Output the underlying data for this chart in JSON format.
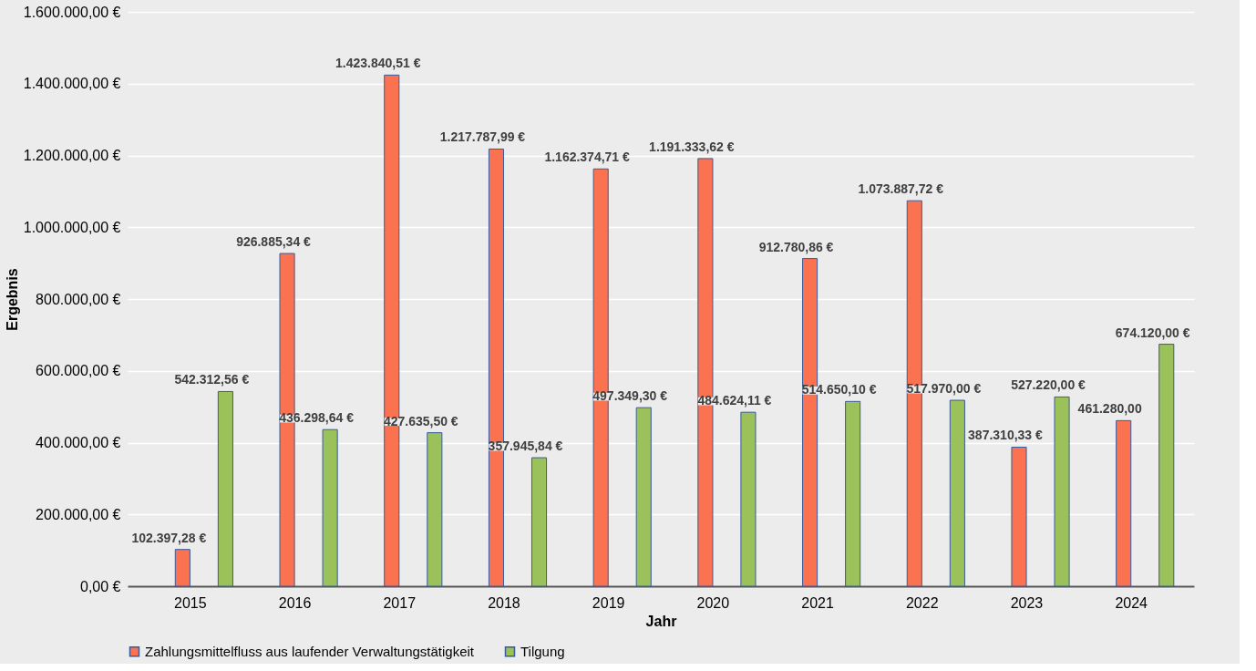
{
  "chart_data": {
    "type": "bar",
    "xlabel": "Jahr",
    "ylabel": "Ergebnis",
    "categories": [
      "2015",
      "2016",
      "2017",
      "2018",
      "2019",
      "2020",
      "2021",
      "2022",
      "2023",
      "2024"
    ],
    "series": [
      {
        "name": "Zahlungsmittelfluss aus laufender Verwaltungstätigkeit",
        "color": "#fa7250",
        "values": [
          102397.28,
          926885.34,
          1423840.51,
          1217787.99,
          1162374.71,
          1191333.62,
          912780.86,
          1073887.72,
          387310.33,
          461280.0
        ],
        "value_labels": [
          "102.397,28 €",
          "926.885,34 €",
          "1.423.840,51 €",
          "1.217.787,99 €",
          "1.162.374,71 €",
          "1.191.333,62 €",
          "912.780,86 €",
          "1.073.887,72 €",
          "387.310,33 €",
          "461.280,00"
        ]
      },
      {
        "name": "Tilgung",
        "color": "#9bc15a",
        "values": [
          542312.56,
          436298.64,
          427635.5,
          357945.84,
          497349.3,
          484624.11,
          514650.1,
          517970.0,
          527220.0,
          674120.0
        ],
        "value_labels": [
          "542.312,56 €",
          "436.298,64 €",
          "427.635,50 €",
          "357.945,84 €",
          "497.349,30 €",
          "484.624,11 €",
          "514.650,10 €",
          "517.970,00 €",
          "527.220,00 €",
          "674.120,00 €"
        ]
      }
    ],
    "ylim": [
      0,
      1600000
    ],
    "yticks": [
      {
        "value": 0,
        "label": "0,00 €"
      },
      {
        "value": 200000,
        "label": "200.000,00 €"
      },
      {
        "value": 400000,
        "label": "400.000,00 €"
      },
      {
        "value": 600000,
        "label": "600.000,00 €"
      },
      {
        "value": 800000,
        "label": "800.000,00 €"
      },
      {
        "value": 1000000,
        "label": "1.000.000,00 €"
      },
      {
        "value": 1200000,
        "label": "1.200.000,00 €"
      },
      {
        "value": 1400000,
        "label": "1.400.000,00 €"
      },
      {
        "value": 1600000,
        "label": "1.600.000,00 €"
      }
    ],
    "grid": "y",
    "legend": "bottom"
  }
}
